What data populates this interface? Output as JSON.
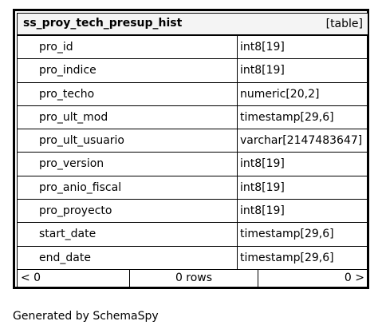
{
  "table": {
    "name": "ss_proy_tech_presup_hist",
    "kind": "[table]",
    "columns": [
      {
        "name": "pro_id",
        "type": "int8[19]"
      },
      {
        "name": "pro_indice",
        "type": "int8[19]"
      },
      {
        "name": "pro_techo",
        "type": "numeric[20,2]"
      },
      {
        "name": "pro_ult_mod",
        "type": "timestamp[29,6]"
      },
      {
        "name": "pro_ult_usuario",
        "type": "varchar[2147483647]"
      },
      {
        "name": "pro_version",
        "type": "int8[19]"
      },
      {
        "name": "pro_anio_fiscal",
        "type": "int8[19]"
      },
      {
        "name": "pro_proyecto",
        "type": "int8[19]"
      },
      {
        "name": "start_date",
        "type": "timestamp[29,6]"
      },
      {
        "name": "end_date",
        "type": "timestamp[29,6]"
      }
    ],
    "footer": {
      "left": "< 0",
      "rows": "0 rows",
      "right": "0 >"
    }
  },
  "generated_by": "Generated by SchemaSpy"
}
